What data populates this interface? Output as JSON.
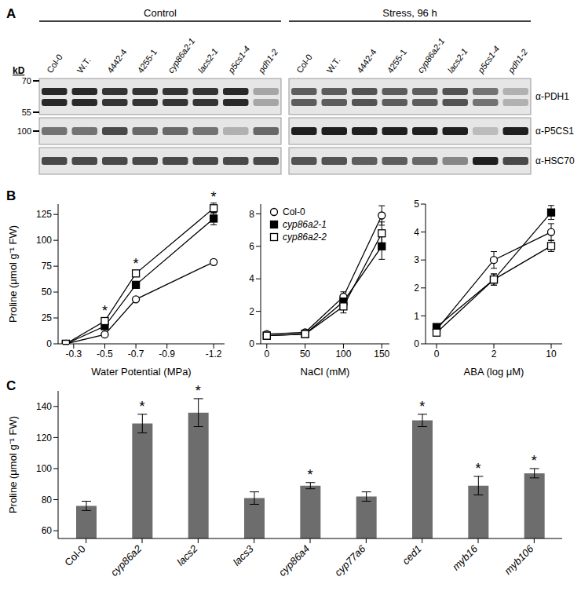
{
  "panel_labels": [
    "A",
    "B",
    "C"
  ],
  "blot": {
    "unit": "kD",
    "markers": [
      {
        "value": 70,
        "row": 0
      },
      {
        "value": 55,
        "row": 0
      },
      {
        "value": 100,
        "row": 1
      }
    ],
    "lanes": [
      "Col-0",
      "W.T.",
      "4442-4",
      "4255-1",
      "cyp86a2-1",
      "lacs2-1",
      "p5cs1-4",
      "pdh1-2"
    ],
    "rows": [
      "α-PDH1",
      "α-P5CS1",
      "α-HSC70"
    ],
    "groups": [
      {
        "title": "Control",
        "intensity": [
          [
            0.9,
            0.9,
            0.85,
            0.85,
            0.85,
            0.85,
            0.9,
            0.3
          ],
          [
            0.55,
            0.55,
            0.75,
            0.6,
            0.6,
            0.55,
            0.25,
            0.6
          ],
          [
            0.75,
            0.75,
            0.75,
            0.75,
            0.75,
            0.75,
            0.75,
            0.75
          ]
        ]
      },
      {
        "title": "Stress, 96 h",
        "intensity": [
          [
            0.65,
            0.65,
            0.7,
            0.65,
            0.65,
            0.7,
            0.55,
            0.25
          ],
          [
            0.95,
            0.95,
            0.95,
            0.95,
            0.95,
            0.95,
            0.2,
            0.95
          ],
          [
            0.7,
            0.7,
            0.65,
            0.65,
            0.6,
            0.45,
            0.95,
            0.75
          ]
        ]
      }
    ]
  },
  "chart_data": [
    {
      "type": "line",
      "x": [
        -0.25,
        -0.5,
        -0.7,
        -1.2
      ],
      "xlim": [
        -0.2,
        -1.27
      ],
      "xticks": [
        -0.3,
        -0.5,
        -0.7,
        -0.9,
        -1.2
      ],
      "ylim": [
        0,
        135
      ],
      "yticks": [
        0,
        25,
        50,
        75,
        100,
        125
      ],
      "x_label": "Water Potential (MPa)",
      "y_label": "Proline (μmol g⁻¹ FW)",
      "series": [
        {
          "name": "Col-0",
          "color": "#000000",
          "marker": "open_circle",
          "values": [
            0,
            9,
            43,
            79
          ],
          "errors": [
            0.5,
            1.5,
            2,
            2
          ]
        },
        {
          "name": "cyp86a2-1",
          "color": "#000000",
          "marker": "filled_square",
          "values": [
            0,
            17,
            57,
            121
          ],
          "errors": [
            0.5,
            2,
            3,
            6
          ]
        },
        {
          "name": "cyp86a2-2",
          "color": "#000000",
          "marker": "open_square",
          "values": [
            0,
            22,
            68,
            131
          ],
          "errors": [
            0.5,
            2,
            3,
            5
          ]
        }
      ],
      "annotations": [
        {
          "x": -0.5,
          "y": 32,
          "text": "*"
        },
        {
          "x": -0.7,
          "y": 78,
          "text": "*"
        },
        {
          "x": -1.2,
          "y": 142,
          "text": "*"
        }
      ]
    },
    {
      "type": "line",
      "x": [
        0,
        50,
        100,
        150
      ],
      "xlim": [
        -8,
        160
      ],
      "xticks": [
        0,
        50,
        100,
        150
      ],
      "ylim": [
        0,
        8.6
      ],
      "yticks": [
        0,
        2,
        4,
        6,
        8
      ],
      "x_label": "NaCl (mM)",
      "legend": "upper left",
      "series": [
        {
          "name": "Col-0",
          "color": "#000000",
          "marker": "open_circle",
          "values": [
            0.6,
            0.7,
            2.9,
            7.9
          ],
          "errors": [
            0.1,
            0.1,
            0.3,
            0.6
          ]
        },
        {
          "name": "cyp86a2-1",
          "color": "#000000",
          "marker": "filled_square",
          "values": [
            0.5,
            0.6,
            2.6,
            6.0
          ],
          "errors": [
            0.1,
            0.1,
            0.3,
            0.8
          ]
        },
        {
          "name": "cyp86a2-2",
          "color": "#000000",
          "marker": "open_square",
          "values": [
            0.5,
            0.6,
            2.3,
            6.8
          ],
          "errors": [
            0.1,
            0.1,
            0.4,
            0.7
          ]
        }
      ]
    },
    {
      "type": "line",
      "categories": [
        "0",
        "2",
        "10"
      ],
      "ylim": [
        0,
        5
      ],
      "yticks": [
        0,
        1,
        2,
        3,
        4,
        5
      ],
      "x_label": "ABA (log μM)",
      "series": [
        {
          "name": "Col-0",
          "color": "#000000",
          "marker": "open_circle",
          "values": [
            0.5,
            3.0,
            4.0
          ],
          "errors": [
            0.1,
            0.3,
            0.3
          ]
        },
        {
          "name": "cyp86a2-1",
          "color": "#000000",
          "marker": "filled_square",
          "values": [
            0.6,
            2.3,
            4.7
          ],
          "errors": [
            0.1,
            0.2,
            0.25
          ]
        },
        {
          "name": "cyp86a2-2",
          "color": "#000000",
          "marker": "open_square",
          "values": [
            0.4,
            2.3,
            3.5
          ],
          "errors": [
            0.1,
            0.2,
            0.2
          ]
        }
      ]
    },
    {
      "type": "bar",
      "categories": [
        "Col-0",
        "cyp86a2",
        "lacs2",
        "lacs3",
        "cyp86a4",
        "cyp77a6",
        "ced1",
        "myb16",
        "myb106"
      ],
      "values": [
        76,
        129,
        136,
        81,
        89,
        82,
        131,
        89,
        97
      ],
      "errors": [
        3,
        6,
        9,
        4,
        2,
        3,
        4,
        6,
        3
      ],
      "color": "#6d6d6d",
      "ylim": [
        55,
        150
      ],
      "yticks": [
        60,
        80,
        100,
        120,
        140
      ],
      "y_label": "Proline (μmol g⁻¹ FW)",
      "annotations": [
        {
          "x": "cyp86a2",
          "y": 140,
          "text": "*"
        },
        {
          "x": "lacs2",
          "y": 150,
          "text": "*"
        },
        {
          "x": "cyp86a4",
          "y": 96,
          "text": "*"
        },
        {
          "x": "ced1",
          "y": 140,
          "text": "*"
        },
        {
          "x": "myb16",
          "y": 100,
          "text": "*"
        },
        {
          "x": "myb106",
          "y": 105,
          "text": "*"
        }
      ]
    }
  ]
}
